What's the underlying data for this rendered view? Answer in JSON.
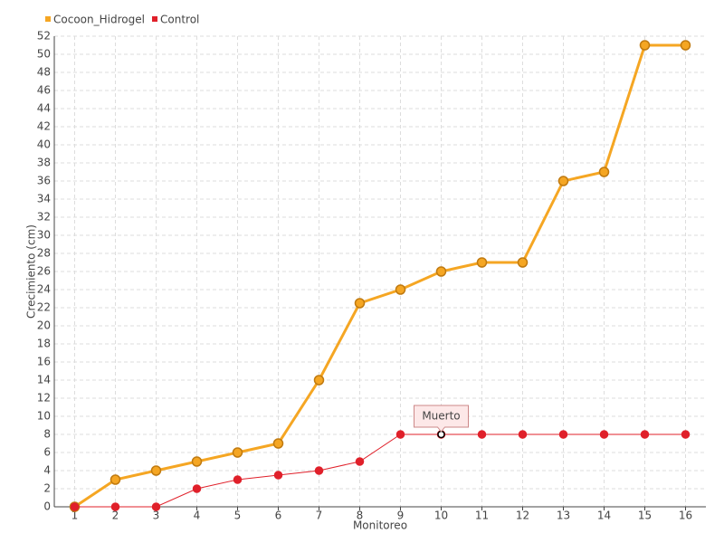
{
  "chart_data": {
    "type": "line",
    "xlabel": "Monitoreo",
    "ylabel": "Crecimiento (cm)",
    "categories": [
      "1",
      "2",
      "3",
      "4",
      "5",
      "6",
      "7",
      "8",
      "9",
      "10",
      "11",
      "12",
      "13",
      "14",
      "15",
      "16"
    ],
    "series": [
      {
        "name": "Cocoon_Hidrogel",
        "color": "#f5a623",
        "values": [
          0,
          3,
          4,
          5,
          6,
          7,
          14,
          22.5,
          24,
          26,
          27,
          27,
          36,
          37,
          51,
          51
        ]
      },
      {
        "name": "Control",
        "color": "#e0202a",
        "values": [
          0,
          0,
          0,
          2,
          3,
          3.5,
          4,
          5,
          8,
          8,
          8,
          8,
          8,
          8,
          8,
          8
        ]
      }
    ],
    "annotations": [
      {
        "text": "Muerto",
        "series": "Control",
        "x": "10"
      }
    ],
    "ylim": [
      0,
      52
    ],
    "yticks": [
      0,
      2,
      4,
      6,
      8,
      10,
      12,
      14,
      16,
      18,
      20,
      22,
      24,
      26,
      28,
      30,
      32,
      34,
      36,
      38,
      40,
      42,
      44,
      46,
      48,
      50,
      52
    ],
    "grid": true,
    "legend": "top-left"
  }
}
